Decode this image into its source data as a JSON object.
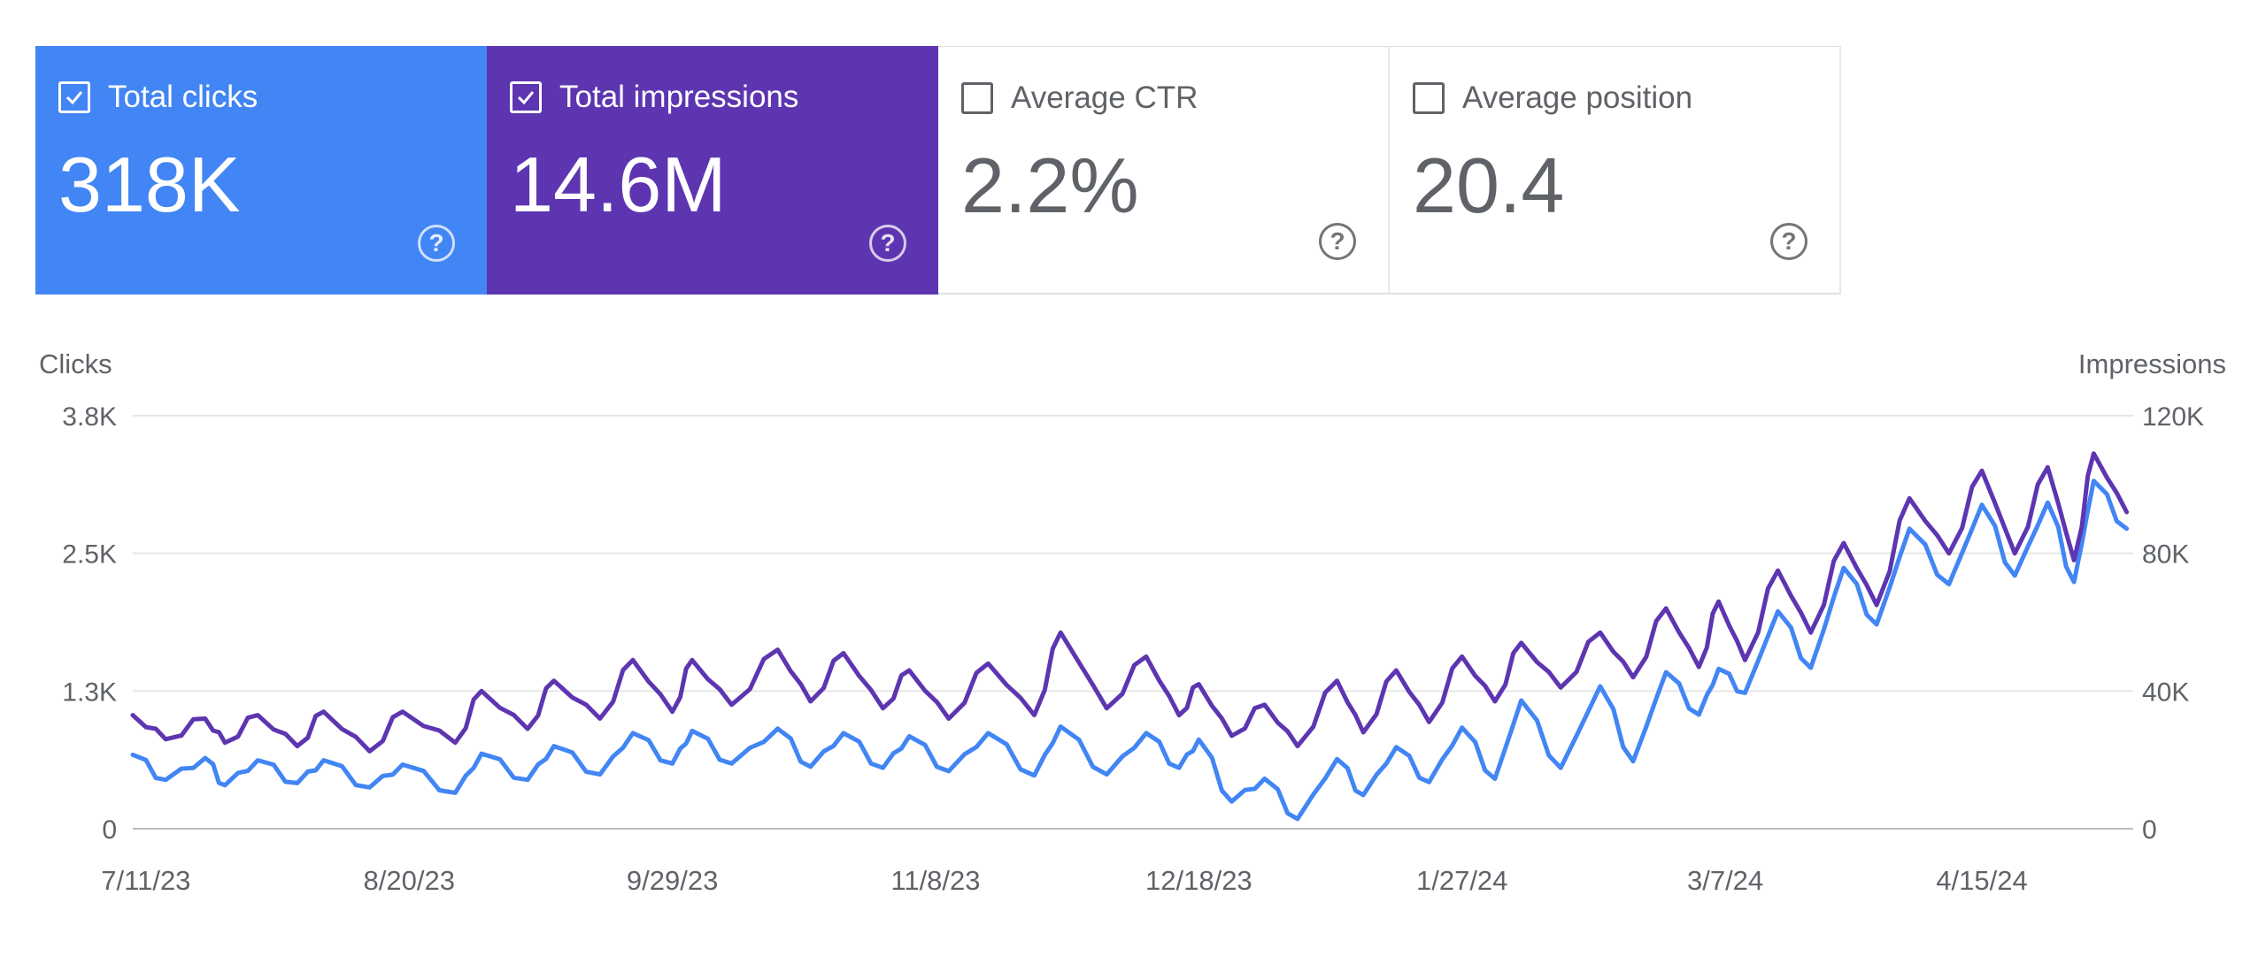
{
  "metrics": [
    {
      "label": "Total clicks",
      "value": "318K",
      "checked": true,
      "bg": "#4285f4",
      "fg": "#ffffff",
      "help_icon": "question-circle-icon"
    },
    {
      "label": "Total impressions",
      "value": "14.6M",
      "checked": true,
      "bg": "#5e35b1",
      "fg": "#ffffff",
      "help_icon": "question-circle-icon"
    },
    {
      "label": "Average CTR",
      "value": "2.2%",
      "checked": false,
      "bg": "#ffffff",
      "fg": "#5f6368",
      "help_icon": "question-circle-icon"
    },
    {
      "label": "Average position",
      "value": "20.4",
      "checked": false,
      "bg": "#ffffff",
      "fg": "#5f6368",
      "help_icon": "question-circle-icon"
    }
  ],
  "help_glyph": "?",
  "chart_data": {
    "type": "line",
    "left_axis": {
      "label": "Clicks",
      "ticks": [
        "0",
        "1.3K",
        "2.5K",
        "3.8K"
      ],
      "ylim": [
        0,
        3800
      ]
    },
    "right_axis": {
      "label": "Impressions",
      "ticks": [
        "0",
        "40K",
        "80K",
        "120K"
      ],
      "ylim": [
        0,
        120000
      ]
    },
    "x_ticks": [
      {
        "date": "2023-07-11",
        "label": "7/11/23"
      },
      {
        "date": "2023-08-20",
        "label": "8/20/23"
      },
      {
        "date": "2023-09-29",
        "label": "9/29/23"
      },
      {
        "date": "2023-11-08",
        "label": "11/8/23"
      },
      {
        "date": "2023-12-18",
        "label": "12/18/23"
      },
      {
        "date": "2024-01-27",
        "label": "1/27/24"
      },
      {
        "date": "2024-03-07",
        "label": "3/7/24"
      },
      {
        "date": "2024-04-15",
        "label": "4/15/24"
      }
    ],
    "xlim": [
      "2023-07-09",
      "2024-05-08"
    ],
    "grid": true,
    "legend": "none",
    "series": [
      {
        "axis": "left",
        "color": "#4285f4",
        "points": [
          [
            "2023-07-09",
            680
          ],
          [
            "2023-07-14",
            450
          ],
          [
            "2023-07-20",
            650
          ],
          [
            "2023-07-23",
            400
          ],
          [
            "2023-07-28",
            630
          ],
          [
            "2023-08-03",
            420
          ],
          [
            "2023-08-07",
            630
          ],
          [
            "2023-08-14",
            380
          ],
          [
            "2023-08-19",
            590
          ],
          [
            "2023-08-27",
            330
          ],
          [
            "2023-08-31",
            690
          ],
          [
            "2023-09-07",
            450
          ],
          [
            "2023-09-11",
            760
          ],
          [
            "2023-09-18",
            500
          ],
          [
            "2023-09-23",
            880
          ],
          [
            "2023-09-29",
            600
          ],
          [
            "2023-10-02",
            900
          ],
          [
            "2023-10-08",
            600
          ],
          [
            "2023-10-15",
            920
          ],
          [
            "2023-10-20",
            570
          ],
          [
            "2023-10-25",
            880
          ],
          [
            "2023-10-31",
            560
          ],
          [
            "2023-11-04",
            850
          ],
          [
            "2023-11-10",
            530
          ],
          [
            "2023-11-16",
            880
          ],
          [
            "2023-11-23",
            490
          ],
          [
            "2023-11-27",
            940
          ],
          [
            "2023-12-04",
            500
          ],
          [
            "2023-12-10",
            880
          ],
          [
            "2023-12-15",
            560
          ],
          [
            "2023-12-18",
            820
          ],
          [
            "2023-12-23",
            250
          ],
          [
            "2023-12-28",
            460
          ],
          [
            "2024-01-02",
            90
          ],
          [
            "2024-01-08",
            640
          ],
          [
            "2024-01-12",
            310
          ],
          [
            "2024-01-17",
            750
          ],
          [
            "2024-01-22",
            430
          ],
          [
            "2024-01-27",
            930
          ],
          [
            "2024-02-01",
            460
          ],
          [
            "2024-02-05",
            1180
          ],
          [
            "2024-02-11",
            560
          ],
          [
            "2024-02-17",
            1310
          ],
          [
            "2024-02-22",
            620
          ],
          [
            "2024-02-27",
            1440
          ],
          [
            "2024-03-03",
            1050
          ],
          [
            "2024-03-06",
            1470
          ],
          [
            "2024-03-10",
            1250
          ],
          [
            "2024-03-15",
            2000
          ],
          [
            "2024-03-20",
            1480
          ],
          [
            "2024-03-25",
            2400
          ],
          [
            "2024-03-30",
            1880
          ],
          [
            "2024-04-04",
            2760
          ],
          [
            "2024-04-10",
            2250
          ],
          [
            "2024-04-15",
            2980
          ],
          [
            "2024-04-20",
            2330
          ],
          [
            "2024-04-25",
            3000
          ],
          [
            "2024-04-29",
            2270
          ],
          [
            "2024-05-02",
            3200
          ],
          [
            "2024-05-07",
            2760
          ]
        ]
      },
      {
        "axis": "right",
        "color": "#5e35b1",
        "points": [
          [
            "2023-07-09",
            33000
          ],
          [
            "2023-07-14",
            26000
          ],
          [
            "2023-07-20",
            32000
          ],
          [
            "2023-07-23",
            25000
          ],
          [
            "2023-07-28",
            33000
          ],
          [
            "2023-08-03",
            24000
          ],
          [
            "2023-08-07",
            34000
          ],
          [
            "2023-08-14",
            22500
          ],
          [
            "2023-08-19",
            34000
          ],
          [
            "2023-08-27",
            25000
          ],
          [
            "2023-08-31",
            40000
          ],
          [
            "2023-09-07",
            29000
          ],
          [
            "2023-09-11",
            43000
          ],
          [
            "2023-09-18",
            32000
          ],
          [
            "2023-09-23",
            49000
          ],
          [
            "2023-09-29",
            34000
          ],
          [
            "2023-10-02",
            49000
          ],
          [
            "2023-10-08",
            36000
          ],
          [
            "2023-10-15",
            52000
          ],
          [
            "2023-10-20",
            37000
          ],
          [
            "2023-10-25",
            51000
          ],
          [
            "2023-10-31",
            35000
          ],
          [
            "2023-11-04",
            46000
          ],
          [
            "2023-11-10",
            32000
          ],
          [
            "2023-11-16",
            48000
          ],
          [
            "2023-11-23",
            33000
          ],
          [
            "2023-11-27",
            57000
          ],
          [
            "2023-12-04",
            35000
          ],
          [
            "2023-12-10",
            50000
          ],
          [
            "2023-12-15",
            33000
          ],
          [
            "2023-12-18",
            42000
          ],
          [
            "2023-12-23",
            27000
          ],
          [
            "2023-12-28",
            36000
          ],
          [
            "2024-01-02",
            24000
          ],
          [
            "2024-01-08",
            43000
          ],
          [
            "2024-01-12",
            28000
          ],
          [
            "2024-01-17",
            46000
          ],
          [
            "2024-01-22",
            31000
          ],
          [
            "2024-01-27",
            50000
          ],
          [
            "2024-02-01",
            37000
          ],
          [
            "2024-02-05",
            54000
          ],
          [
            "2024-02-11",
            41000
          ],
          [
            "2024-02-17",
            57000
          ],
          [
            "2024-02-22",
            44000
          ],
          [
            "2024-02-27",
            64000
          ],
          [
            "2024-03-03",
            47000
          ],
          [
            "2024-03-06",
            66000
          ],
          [
            "2024-03-10",
            49000
          ],
          [
            "2024-03-15",
            75000
          ],
          [
            "2024-03-20",
            57000
          ],
          [
            "2024-03-25",
            83000
          ],
          [
            "2024-03-30",
            65000
          ],
          [
            "2024-04-04",
            96000
          ],
          [
            "2024-04-10",
            80000
          ],
          [
            "2024-04-15",
            104000
          ],
          [
            "2024-04-20",
            80000
          ],
          [
            "2024-04-25",
            105000
          ],
          [
            "2024-04-29",
            78000
          ],
          [
            "2024-05-02",
            109000
          ],
          [
            "2024-05-07",
            92000
          ]
        ]
      }
    ]
  }
}
